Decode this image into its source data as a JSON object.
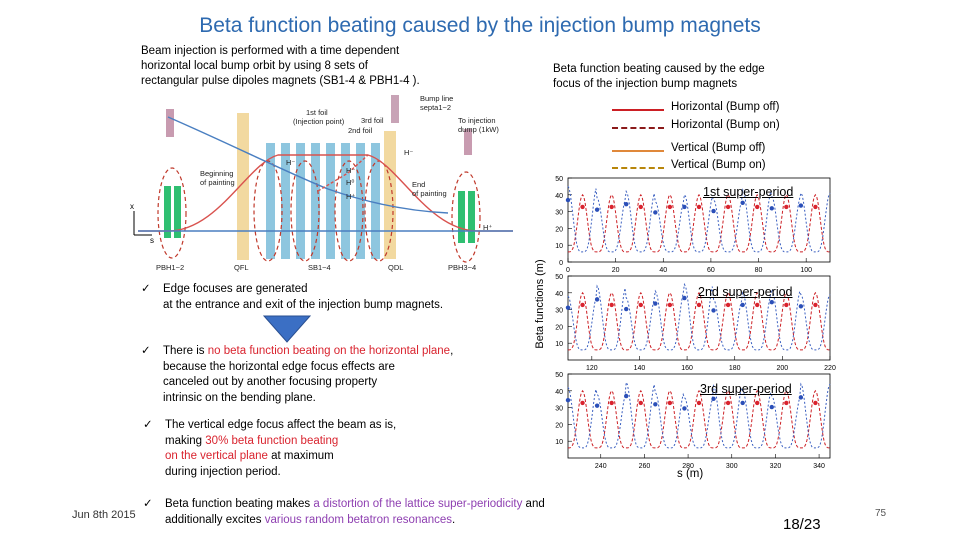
{
  "title": "Beta function beating caused by the injection bump magnets",
  "intro": {
    "line1": "Beam injection is performed with a time dependent",
    "line2": "horizontal local bump orbit by using 8 sets of",
    "line3": "rectangular pulse dipoles magnets (SB1-4 & PBH1-4 )."
  },
  "right_caption": {
    "line1": "Beta function beating caused by the edge",
    "line2": "focus of the injection bump magnets"
  },
  "legend": [
    {
      "label": "Horizontal (Bump off)",
      "color": "#cc1f24",
      "dash": false
    },
    {
      "label": "Horizontal (Bump on)",
      "color": "#8b1a1a",
      "dash": true
    },
    {
      "label": "Vertical (Bump off)",
      "color": "#e0883a",
      "dash": false
    },
    {
      "label": "Vertical (Bump on)",
      "color": "#b8860b",
      "dash": true
    }
  ],
  "diagram": {
    "labels": {
      "bump_line": "Bump line",
      "septa": "septa1~2",
      "foil1a": "1st foil",
      "foil1b": "(Injection point)",
      "foil3": "3rd foil",
      "foil2": "2nd foil",
      "dump_a": "To injection",
      "dump_b": "dump (1kW)",
      "hminus": "H⁻",
      "hzero": "H⁰",
      "hmin2": "H⁻",
      "hminus3": "H⁻",
      "hplus": "H⁺",
      "hplus2": "H⁺",
      "begin_a": "Beginning",
      "begin_b": "of painting",
      "end_a": "End",
      "end_b": "of painting",
      "axis_x": "s",
      "axis_y": "x",
      "pbh12": "PBH1~2",
      "qfl": "QFL",
      "sb14": "SB1~4",
      "qdl": "QDL",
      "pbh34": "PBH3~4"
    }
  },
  "bullets": {
    "b1_line1": "Edge focuses are generated",
    "b1_line2": "at the entrance and exit of the injection bump magnets.",
    "b2_pre": "There is ",
    "b2_red": "no beta function beating on the horizontal plane",
    "b2_post": ",",
    "b2_line2": "because the horizontal edge focus effects are",
    "b2_line3": "canceled out by another focusing property",
    "b2_line4": "intrinsic on the bending plane.",
    "b3_line1": "The vertical edge focus affect the beam as is,",
    "b3_line2_pre": "making ",
    "b3_line2_red": "30% beta function beating",
    "b3_line3_red": "on the vertical plane",
    "b3_line3_post": " at maximum",
    "b3_line4": "during injection period.",
    "b4_pre": "Beta function beating makes ",
    "b4_pur": "a distortion of the lattice super-periodicity",
    "b4_post": " and",
    "b4_line2_pre": "additionally excites ",
    "b4_line2_pur": "various random betatron resonances",
    "b4_line2_post": ".",
    "check": "✓"
  },
  "chart_data": [
    {
      "type": "line",
      "title": "1st super-period",
      "xlim": [
        0,
        110
      ],
      "ylim": [
        0,
        50
      ],
      "xticks": [
        "0",
        "20",
        "40",
        "60",
        "80",
        "100"
      ],
      "yticks": [
        "0",
        "10",
        "20",
        "30",
        "40",
        "50"
      ],
      "ylabel": "Beta functions (m)",
      "series": [
        {
          "name": "Horizontal (Bump off)",
          "peaks": [
            40,
            40,
            40,
            40,
            40,
            40,
            40,
            40,
            40
          ]
        },
        {
          "name": "Vertical (Bump on)",
          "peaks": [
            45,
            38,
            42,
            36,
            40,
            37,
            43,
            39,
            41
          ]
        }
      ]
    },
    {
      "type": "line",
      "title": "2nd super-period",
      "xlim": [
        110,
        220
      ],
      "ylim": [
        0,
        50
      ],
      "xticks": [
        "120",
        "140",
        "160",
        "180",
        "200",
        "220"
      ],
      "yticks": [
        "0",
        "10",
        "20",
        "30",
        "40",
        "50"
      ],
      "series": [
        {
          "name": "Horizontal (Bump off)",
          "peaks": [
            40,
            40,
            40,
            40,
            40,
            40,
            40,
            40,
            40
          ]
        },
        {
          "name": "Vertical (Bump on)",
          "peaks": [
            38,
            44,
            37,
            41,
            45,
            36,
            40,
            42,
            39
          ]
        }
      ]
    },
    {
      "type": "line",
      "title": "3rd super-period",
      "xlim": [
        225,
        345
      ],
      "ylim": [
        0,
        50
      ],
      "xticks": [
        "240",
        "260",
        "280",
        "300",
        "320",
        "340"
      ],
      "yticks": [
        "0",
        "10",
        "20",
        "30",
        "40",
        "50"
      ],
      "xlabel": "s (m)",
      "series": [
        {
          "name": "Horizontal (Bump off)",
          "peaks": [
            40,
            40,
            40,
            40,
            40,
            40,
            40,
            40,
            40
          ]
        },
        {
          "name": "Vertical (Bump on)",
          "peaks": [
            42,
            38,
            45,
            39,
            36,
            43,
            40,
            37,
            44
          ]
        }
      ]
    }
  ],
  "footer": {
    "date": "Jun 8th 2015",
    "page": "18/23",
    "slide_no": "75"
  }
}
